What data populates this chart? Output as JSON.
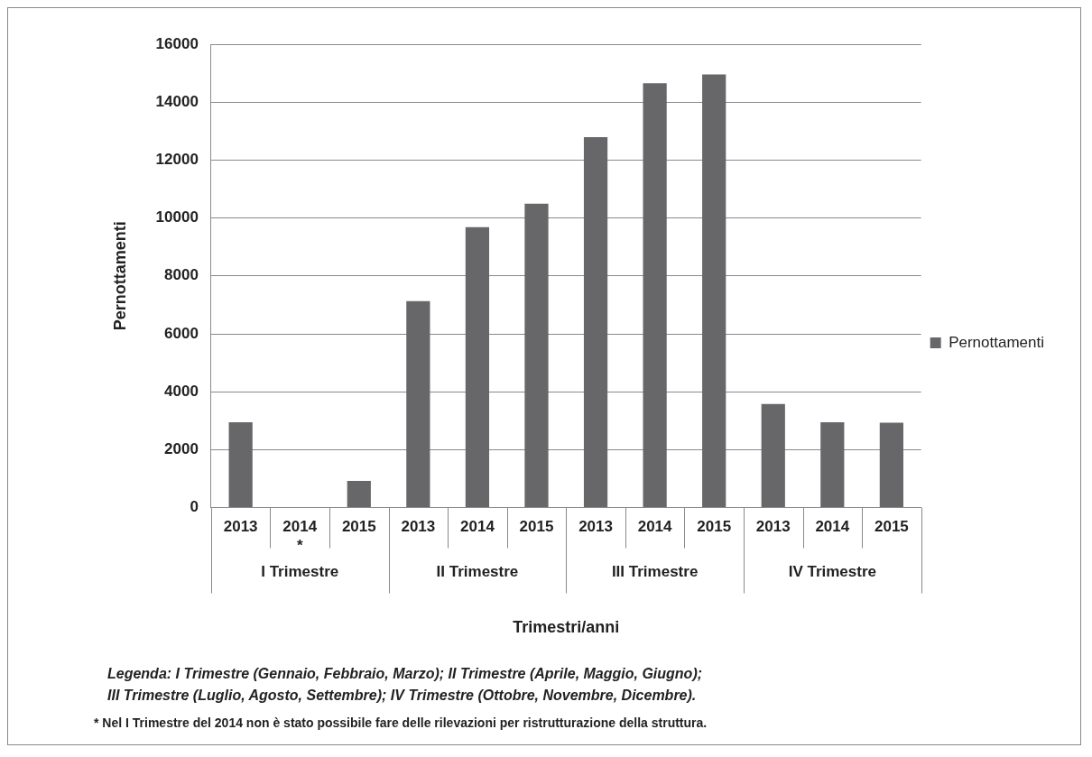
{
  "chart_data": {
    "type": "bar",
    "categories": [
      "2013",
      "2014\n*",
      "2015",
      "2013",
      "2014",
      "2015",
      "2013",
      "2014",
      "2015",
      "2013",
      "2014",
      "2015"
    ],
    "series": [
      {
        "name": "Pernottamenti",
        "color": "#676769",
        "values": [
          2950,
          null,
          920,
          7130,
          9680,
          10490,
          12790,
          14650,
          14960,
          3580,
          2950,
          2930
        ]
      }
    ],
    "xlabel": "Trimestri/anni",
    "ylabel": "Pernottamenti",
    "ylim": [
      0,
      16000
    ],
    "yticks": [
      0,
      2000,
      4000,
      6000,
      8000,
      10000,
      12000,
      14000,
      16000
    ],
    "grid": "y",
    "legend": "right",
    "annotations": [
      "I Trimestre",
      "II Trimestre",
      "III Trimestre",
      "IV Trimestre",
      "Legenda: I Trimestre (Gennaio, Febbraio, Marzo); II Trimestre (Aprile, Maggio, Giugno);",
      "III Trimestre (Luglio, Agosto, Settembre); IV Trimestre (Ottobre, Novembre, Dicembre).",
      "* Nel I Trimestre del 2014 non è stato possibile fare delle rilevazioni per ristrutturazione della struttura."
    ]
  }
}
